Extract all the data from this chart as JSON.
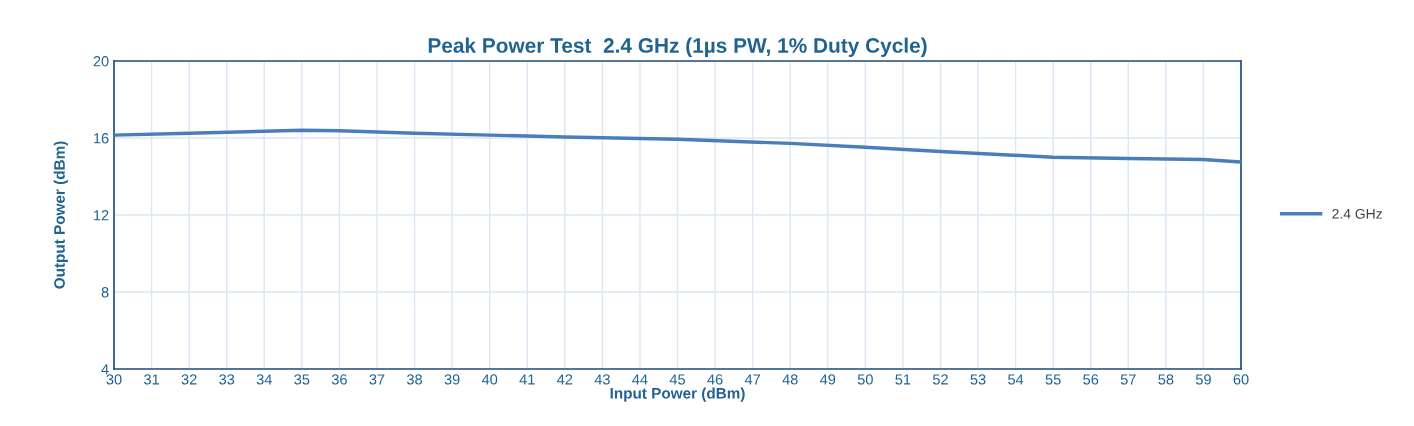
{
  "chart_data": {
    "type": "line",
    "title": "Peak Power Test  2.4 GHz (1µs PW, 1% Duty Cycle)",
    "xlabel": "Input Power (dBm)",
    "ylabel": "Output Power (dBm)",
    "series": [
      {
        "name": "2.4 GHz",
        "color": "#4a7ebb",
        "x": [
          30,
          32,
          35,
          36,
          38,
          40,
          42,
          45,
          48,
          50,
          52,
          55,
          57,
          59,
          60
        ],
        "values": [
          16.15,
          16.25,
          16.4,
          16.38,
          16.25,
          16.15,
          16.05,
          15.93,
          15.72,
          15.52,
          15.3,
          15.0,
          14.93,
          14.88,
          14.75
        ]
      }
    ],
    "xlim": [
      30,
      60
    ],
    "xticks": [
      30,
      31,
      32,
      33,
      34,
      35,
      36,
      37,
      38,
      39,
      40,
      41,
      42,
      43,
      44,
      45,
      46,
      47,
      48,
      49,
      50,
      51,
      52,
      53,
      54,
      55,
      56,
      57,
      58,
      59,
      60
    ],
    "ylim": [
      4,
      20
    ],
    "yticks": [
      4,
      8,
      12,
      16,
      20
    ],
    "grid": true,
    "legend": "right",
    "marker": "none",
    "line_style": "solid"
  }
}
